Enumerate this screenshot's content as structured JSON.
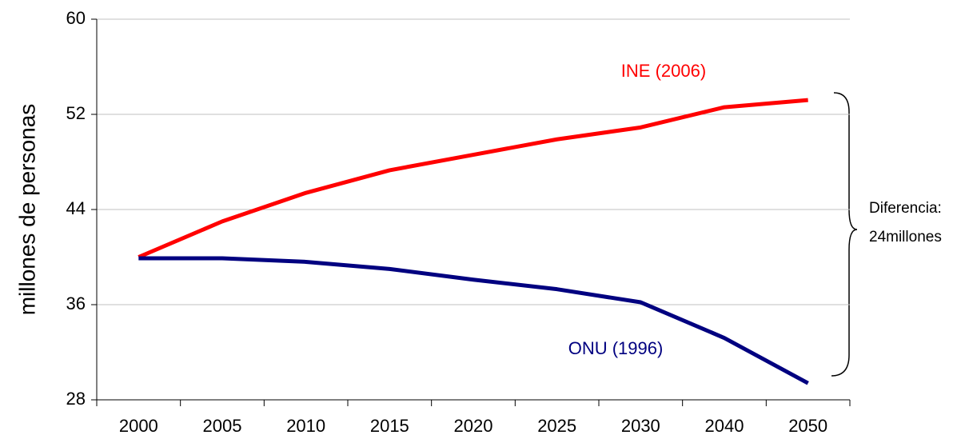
{
  "chart_data": {
    "type": "line",
    "y_label": "millones de personas",
    "categories": [
      "2000",
      "2005",
      "2010",
      "2015",
      "2020",
      "2025",
      "2030",
      "2040",
      "2050"
    ],
    "series": [
      {
        "name": "INE (2006)",
        "color": "#ff0000",
        "values": [
          40.0,
          43.0,
          45.4,
          47.3,
          48.6,
          49.9,
          50.9,
          52.6,
          53.2
        ]
      },
      {
        "name": "ONU (1996)",
        "color": "#000080",
        "values": [
          39.9,
          39.9,
          39.6,
          39.0,
          38.1,
          37.3,
          36.2,
          33.2,
          29.4
        ]
      }
    ],
    "ylim": [
      28,
      60
    ],
    "yticks": [
      28,
      36,
      44,
      52,
      60
    ],
    "grid": true,
    "annotations": [
      "Diferencia:",
      "24millones"
    ]
  }
}
